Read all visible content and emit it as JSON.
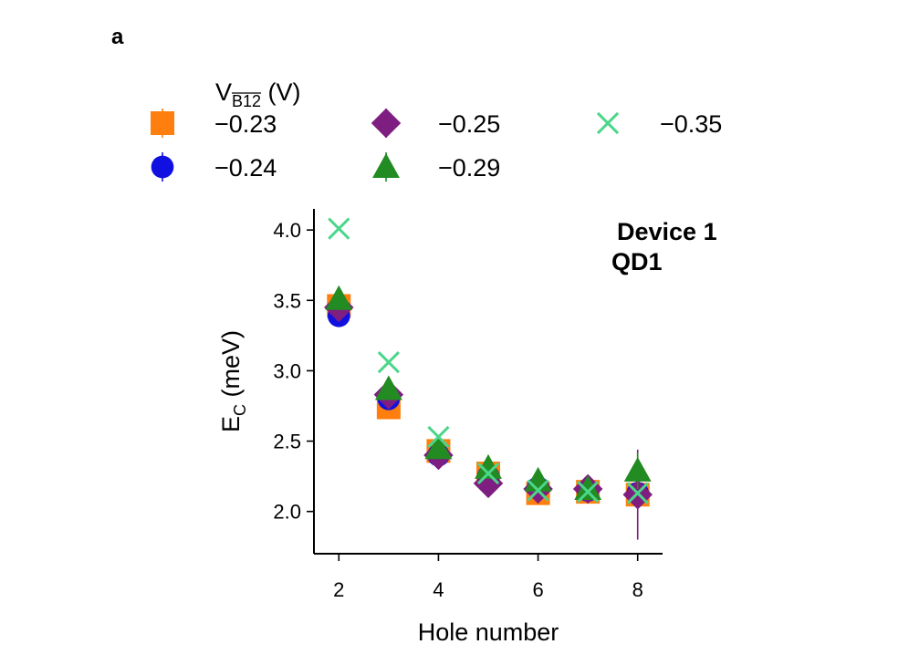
{
  "panel_label": "a",
  "chart_data": {
    "type": "scatter",
    "xlabel": "Hole number",
    "ylabel_main": "E",
    "ylabel_sub": "C",
    "ylabel_unit": " (meV)",
    "xlim": [
      1.5,
      8.5
    ],
    "ylim": [
      1.7,
      4.15
    ],
    "xticks": [
      2,
      4,
      6,
      8
    ],
    "yticks": [
      2.0,
      2.5,
      3.0,
      3.5,
      4.0
    ],
    "xtick_labels": [
      "2",
      "4",
      "6",
      "8"
    ],
    "ytick_labels": [
      "2.0",
      "2.5",
      "3.0",
      "3.5",
      "4.0"
    ],
    "annotation": [
      "Device 1",
      "QD1"
    ],
    "legend": {
      "title_main": "V",
      "title_sub": "B12",
      "title_unit": " (V)",
      "position": "top"
    },
    "series": [
      {
        "name": "−0.23",
        "marker": "square",
        "color": "#ff7f0e",
        "x": [
          2,
          3,
          4,
          5,
          6,
          7,
          8
        ],
        "y": [
          3.46,
          2.74,
          2.43,
          2.27,
          2.13,
          2.14,
          2.12
        ],
        "err": [
          0.02,
          0.02,
          0.02,
          0.02,
          0.02,
          0.02,
          0.02
        ]
      },
      {
        "name": "−0.24",
        "marker": "circle",
        "color": "#1010e0",
        "x": [
          2,
          3,
          4,
          5,
          6,
          7,
          8
        ],
        "y": [
          3.39,
          2.8,
          2.4,
          2.25,
          2.17,
          2.15,
          2.13
        ],
        "err": [
          0.02,
          0.02,
          0.02,
          0.02,
          0.02,
          0.02,
          0.03
        ]
      },
      {
        "name": "−0.25",
        "marker": "diamond",
        "color": "#7e1e80",
        "x": [
          2,
          3,
          4,
          5,
          6,
          7,
          8
        ],
        "y": [
          3.45,
          2.83,
          2.4,
          2.2,
          2.16,
          2.16,
          2.12
        ],
        "err": [
          0.02,
          0.02,
          0.02,
          0.02,
          0.02,
          0.02,
          0.32
        ]
      },
      {
        "name": "−0.29",
        "marker": "triangle",
        "color": "#228b22",
        "x": [
          2,
          3,
          4,
          5,
          6,
          7,
          8
        ],
        "y": [
          3.51,
          2.87,
          2.45,
          2.31,
          2.22,
          2.16,
          2.29
        ],
        "err": [
          0.02,
          0.02,
          0.02,
          0.03,
          0.02,
          0.02,
          0.13
        ]
      },
      {
        "name": "−0.35",
        "marker": "x",
        "color": "#4bd68a",
        "x": [
          2,
          3,
          4,
          5,
          6,
          7,
          8
        ],
        "y": [
          4.01,
          3.06,
          2.53,
          2.27,
          2.15,
          2.14,
          2.13
        ],
        "err": [
          0.0,
          0.0,
          0.0,
          0.0,
          0.0,
          0.0,
          0.0
        ]
      }
    ]
  }
}
